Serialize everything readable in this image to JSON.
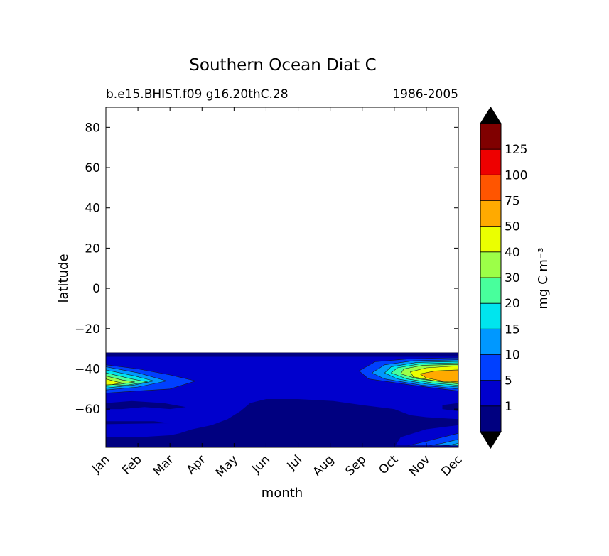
{
  "chart_data": {
    "type": "heatmap",
    "title": "Southern Ocean Diat C",
    "subtitle_left": "b.e15.BHIST.f09 g16.20thC.28",
    "subtitle_right": "1986-2005",
    "xlabel": "month",
    "ylabel": "latitude",
    "x_categories": [
      "Jan",
      "Feb",
      "Mar",
      "Apr",
      "May",
      "Jun",
      "Jul",
      "Aug",
      "Sep",
      "Oct",
      "Nov",
      "Dec"
    ],
    "xlim": [
      0,
      11
    ],
    "ylim": [
      -79,
      90
    ],
    "yticks": [
      -60,
      -40,
      -20,
      0,
      20,
      40,
      60,
      80
    ],
    "ytick_labels": [
      "−60",
      "−40",
      "−20",
      "0",
      "20",
      "40",
      "60",
      "80"
    ],
    "data_lat_top": -32,
    "colorbar": {
      "label": "mg C m⁻³",
      "extend": "both",
      "levels": [
        0,
        1,
        5,
        10,
        15,
        20,
        30,
        40,
        50,
        75,
        100,
        125,
        150
      ],
      "tick_labels": [
        "1",
        "5",
        "10",
        "15",
        "20",
        "30",
        "40",
        "50",
        "75",
        "100",
        "125"
      ],
      "colors": [
        "#000080",
        "#0000cd",
        "#0040ff",
        "#0098ff",
        "#00e5ee",
        "#48ff9c",
        "#9cff48",
        "#ebff00",
        "#ffaa00",
        "#ff5500",
        "#ee0000",
        "#800000"
      ],
      "under_color": "#000000",
      "over_color": "#000000"
    },
    "regions": [
      {
        "name": "background",
        "level": 1,
        "polygon": [
          [
            0,
            -32
          ],
          [
            11,
            -32
          ],
          [
            11,
            -79
          ],
          [
            0,
            -79
          ]
        ]
      },
      {
        "name": "top-edge-band",
        "level": 0,
        "polygon": [
          [
            0,
            -32
          ],
          [
            11,
            -32
          ],
          [
            11,
            -34
          ],
          [
            0,
            -34
          ]
        ]
      },
      {
        "name": "low-lat-south",
        "level": 0,
        "polygon": [
          [
            0,
            -79
          ],
          [
            0,
            -74
          ],
          [
            1,
            -74
          ],
          [
            2,
            -73
          ],
          [
            2.3,
            -72
          ],
          [
            2.7,
            -70
          ],
          [
            3.3,
            -68
          ],
          [
            3.8,
            -65
          ],
          [
            4.2,
            -61
          ],
          [
            4.5,
            -57
          ],
          [
            5,
            -55
          ],
          [
            6,
            -55
          ],
          [
            7.1,
            -56
          ],
          [
            8,
            -58
          ],
          [
            9,
            -60
          ],
          [
            9.5,
            -63
          ],
          [
            10,
            -64
          ],
          [
            11,
            -65
          ],
          [
            11,
            -68
          ],
          [
            10,
            -70
          ],
          [
            9.2,
            -74
          ],
          [
            9,
            -79
          ]
        ]
      },
      {
        "name": "low-lat-mid",
        "level": 0,
        "polygon": [
          [
            0,
            -57
          ],
          [
            0.8,
            -56
          ],
          [
            1.8,
            -57
          ],
          [
            2.5,
            -59
          ],
          [
            2.0,
            -60
          ],
          [
            1.2,
            -59
          ],
          [
            0.5,
            -60
          ],
          [
            0,
            -60
          ]
        ]
      },
      {
        "name": "low-lat-strip",
        "level": 0,
        "polygon": [
          [
            0,
            -66
          ],
          [
            1.5,
            -66
          ],
          [
            2,
            -67
          ],
          [
            0,
            -67.5
          ]
        ]
      },
      {
        "name": "low-lat-dec-mid",
        "level": 0,
        "polygon": [
          [
            10.5,
            -58
          ],
          [
            11,
            -57
          ],
          [
            11,
            -61
          ],
          [
            10.5,
            -60
          ]
        ]
      },
      {
        "name": "jan-5",
        "level": 2,
        "polygon": [
          [
            0,
            -38
          ],
          [
            1,
            -40
          ],
          [
            2,
            -43
          ],
          [
            2.8,
            -46
          ],
          [
            2,
            -50
          ],
          [
            1,
            -51
          ],
          [
            0,
            -52
          ]
        ]
      },
      {
        "name": "jan-10",
        "level": 3,
        "polygon": [
          [
            0,
            -39
          ],
          [
            1,
            -42
          ],
          [
            1.9,
            -46
          ],
          [
            1,
            -49
          ],
          [
            0,
            -50.5
          ]
        ]
      },
      {
        "name": "jan-15",
        "level": 4,
        "polygon": [
          [
            0,
            -40.5
          ],
          [
            0.9,
            -43.5
          ],
          [
            1.5,
            -46
          ],
          [
            0.9,
            -48
          ],
          [
            0,
            -49.5
          ]
        ]
      },
      {
        "name": "jan-20",
        "level": 5,
        "polygon": [
          [
            0,
            -42
          ],
          [
            0.8,
            -45
          ],
          [
            1.3,
            -46.5
          ],
          [
            0.7,
            -48
          ],
          [
            0,
            -48.7
          ]
        ]
      },
      {
        "name": "jan-30",
        "level": 6,
        "polygon": [
          [
            0,
            -43.5
          ],
          [
            0.5,
            -45.5
          ],
          [
            0.9,
            -46.5
          ],
          [
            0.4,
            -47.7
          ],
          [
            0,
            -48
          ]
        ]
      },
      {
        "name": "jan-40",
        "level": 7,
        "polygon": [
          [
            0,
            -45
          ],
          [
            0.3,
            -46.3
          ],
          [
            0.5,
            -47
          ],
          [
            0.2,
            -47.8
          ],
          [
            0,
            -48
          ]
        ]
      },
      {
        "name": "oct-5",
        "level": 2,
        "polygon": [
          [
            11,
            -34.5
          ],
          [
            9.5,
            -35
          ],
          [
            8.4,
            -36.5
          ],
          [
            7.9,
            -41
          ],
          [
            8.2,
            -45
          ],
          [
            9.5,
            -48
          ],
          [
            10.5,
            -50
          ],
          [
            11,
            -51
          ]
        ]
      },
      {
        "name": "oct-10",
        "level": 3,
        "polygon": [
          [
            11,
            -35.5
          ],
          [
            9.6,
            -36
          ],
          [
            8.7,
            -38
          ],
          [
            8.3,
            -42
          ],
          [
            8.7,
            -45
          ],
          [
            9.8,
            -48
          ],
          [
            11,
            -50
          ]
        ]
      },
      {
        "name": "oct-15",
        "level": 4,
        "polygon": [
          [
            11,
            -36.3
          ],
          [
            9.7,
            -36.8
          ],
          [
            8.9,
            -39
          ],
          [
            8.7,
            -42
          ],
          [
            9.1,
            -45
          ],
          [
            10,
            -47.5
          ],
          [
            11,
            -49
          ]
        ]
      },
      {
        "name": "oct-20",
        "level": 5,
        "polygon": [
          [
            11,
            -37
          ],
          [
            9.8,
            -37.5
          ],
          [
            9.1,
            -39.5
          ],
          [
            8.9,
            -42
          ],
          [
            9.4,
            -45
          ],
          [
            10.2,
            -47
          ],
          [
            11,
            -48.2
          ]
        ]
      },
      {
        "name": "oct-30",
        "level": 6,
        "polygon": [
          [
            11,
            -37.8
          ],
          [
            9.9,
            -38.2
          ],
          [
            9.3,
            -40
          ],
          [
            9.2,
            -42.5
          ],
          [
            9.7,
            -44.8
          ],
          [
            10.5,
            -46.5
          ],
          [
            11,
            -47.5
          ]
        ]
      },
      {
        "name": "oct-40",
        "level": 7,
        "polygon": [
          [
            11,
            -38.5
          ],
          [
            10,
            -39.5
          ],
          [
            9.5,
            -41.5
          ],
          [
            9.6,
            -44
          ],
          [
            10.3,
            -46
          ],
          [
            11,
            -47
          ]
        ]
      },
      {
        "name": "oct-50",
        "level": 8,
        "polygon": [
          [
            11,
            -40.5
          ],
          [
            10.3,
            -41
          ],
          [
            9.8,
            -42.5
          ],
          [
            10,
            -44.5
          ],
          [
            10.5,
            -46
          ],
          [
            11,
            -46.5
          ]
        ]
      },
      {
        "name": "dec-south-5",
        "level": 2,
        "polygon": [
          [
            9.2,
            -79
          ],
          [
            10,
            -76
          ],
          [
            11,
            -72
          ],
          [
            11,
            -79
          ]
        ]
      },
      {
        "name": "dec-south-10",
        "level": 3,
        "polygon": [
          [
            9.8,
            -79
          ],
          [
            10.5,
            -77
          ],
          [
            11,
            -75
          ],
          [
            11,
            -79
          ]
        ]
      },
      {
        "name": "dec-south-15",
        "level": 4,
        "polygon": [
          [
            10.3,
            -79
          ],
          [
            10.7,
            -78
          ],
          [
            11,
            -77
          ],
          [
            11,
            -79
          ]
        ]
      },
      {
        "name": "dec-south-20",
        "level": 5,
        "polygon": [
          [
            10.1,
            -78.7
          ],
          [
            10.6,
            -78
          ],
          [
            10.9,
            -78.4
          ],
          [
            10.5,
            -79
          ]
        ]
      },
      {
        "name": "bottom-edge-band",
        "level": 0,
        "polygon": [
          [
            0,
            -78
          ],
          [
            11,
            -78
          ],
          [
            11,
            -79
          ],
          [
            0,
            -79
          ]
        ]
      }
    ]
  }
}
